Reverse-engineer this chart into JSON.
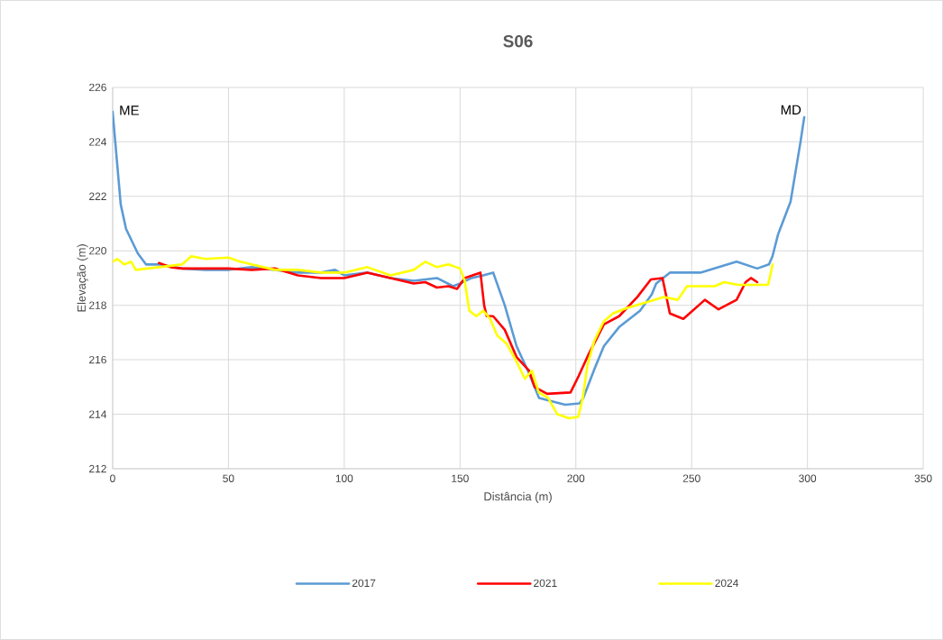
{
  "chart_data": {
    "type": "line",
    "title": "S06",
    "xlabel": "Distância (m)",
    "ylabel": "Elevação (m)",
    "xlim": [
      0,
      350
    ],
    "ylim": [
      212,
      226
    ],
    "xticks": [
      0,
      50,
      100,
      150,
      200,
      250,
      300,
      350
    ],
    "yticks": [
      212,
      214,
      216,
      218,
      220,
      222,
      224,
      226
    ],
    "grid": true,
    "legend": "bottom",
    "annotations": [
      {
        "text": "ME",
        "x": 0,
        "y": 225.1
      },
      {
        "text": "MD",
        "x": 298.6,
        "y": 224.9
      }
    ],
    "series": [
      {
        "name": "2017",
        "color": "#5b9bd5",
        "x": [
          0,
          3.5,
          5.8,
          10.9,
          14.4,
          20,
          30,
          40,
          50,
          60,
          70,
          80,
          90,
          96,
          100,
          110,
          120,
          130,
          140,
          147,
          150,
          155,
          160,
          164.3,
          169.3,
          174.4,
          179.8,
          184.1,
          195.4,
          201.6,
          203.2,
          208.2,
          212.1,
          218.7,
          227.7,
          232.8,
          234.7,
          240.6,
          253.8,
          269.4,
          278.3,
          283.4,
          284.9,
          287.3,
          292.7,
          297,
          298.6
        ],
        "values": [
          225.1,
          221.7,
          220.8,
          219.9,
          219.5,
          219.5,
          219.35,
          219.3,
          219.3,
          219.4,
          219.3,
          219.2,
          219.2,
          219.3,
          219.1,
          219.2,
          219.0,
          218.9,
          219.0,
          218.7,
          218.8,
          219.0,
          219.1,
          219.2,
          218.0,
          216.5,
          215.5,
          214.6,
          214.35,
          214.4,
          214.6,
          215.7,
          216.5,
          217.2,
          217.8,
          218.4,
          218.8,
          219.2,
          219.2,
          219.6,
          219.35,
          219.5,
          219.8,
          220.6,
          221.8,
          224.0,
          224.9
        ]
      },
      {
        "name": "2021",
        "color": "#ff0000",
        "x": [
          20,
          25,
          30,
          40,
          50,
          60,
          70,
          80,
          90,
          100,
          110,
          120,
          130,
          135,
          140,
          145,
          148.7,
          152,
          158.8,
          160.4,
          161.5,
          164.3,
          169.3,
          174.4,
          179.8,
          182.2,
          187.6,
          197.7,
          201.2,
          205.5,
          212.1,
          218.7,
          226.5,
          232.4,
          237.4,
          240.6,
          246.4,
          255.7,
          261.6,
          269.4,
          273.3,
          275.6,
          278.3
        ],
        "values": [
          219.55,
          219.4,
          219.35,
          219.35,
          219.35,
          219.3,
          219.35,
          219.1,
          219.0,
          219.0,
          219.2,
          219.0,
          218.8,
          218.85,
          218.65,
          218.7,
          218.6,
          219.0,
          219.2,
          218.0,
          217.6,
          217.6,
          217.1,
          216.1,
          215.6,
          215.0,
          214.75,
          214.8,
          215.4,
          216.2,
          217.3,
          217.6,
          218.3,
          218.95,
          219.0,
          217.7,
          217.5,
          218.2,
          217.85,
          218.2,
          218.85,
          219.0,
          218.85
        ]
      },
      {
        "name": "2024",
        "color": "#ffff00",
        "x": [
          0,
          2,
          5,
          8,
          10,
          20,
          30,
          34,
          40,
          50,
          55,
          60,
          70,
          80,
          90,
          100,
          110,
          120,
          130,
          135,
          140,
          145,
          150,
          152,
          154,
          157,
          160,
          163,
          166,
          170,
          174,
          178,
          181,
          184,
          188,
          192,
          197,
          201,
          203,
          205,
          208,
          212,
          216,
          222,
          230,
          238,
          244,
          248,
          260,
          264,
          270,
          283,
          285
        ],
        "values": [
          219.6,
          219.7,
          219.5,
          219.6,
          219.3,
          219.4,
          219.5,
          219.8,
          219.7,
          219.75,
          219.6,
          219.5,
          219.3,
          219.3,
          219.2,
          219.2,
          219.4,
          219.1,
          219.3,
          219.6,
          219.4,
          219.5,
          219.35,
          218.9,
          217.8,
          217.6,
          217.8,
          217.5,
          216.9,
          216.6,
          216.0,
          215.3,
          215.6,
          214.8,
          214.6,
          214.0,
          213.85,
          213.9,
          214.6,
          215.8,
          216.7,
          217.4,
          217.7,
          217.9,
          218.1,
          218.3,
          218.2,
          218.7,
          218.7,
          218.85,
          218.75,
          218.75,
          219.5
        ]
      }
    ]
  }
}
